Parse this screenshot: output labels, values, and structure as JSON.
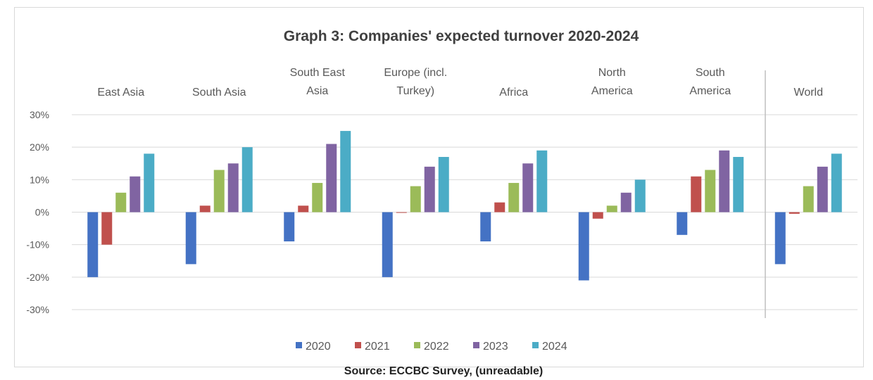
{
  "chart_data": {
    "type": "bar",
    "title": "Graph 3:  Companies' expected turnover 2020-2024",
    "categories": [
      "East Asia",
      "South Asia",
      "South East Asia",
      "Europe (incl. Turkey)",
      "Africa",
      "North America",
      "South America",
      "World"
    ],
    "category_labels": [
      [
        "East Asia"
      ],
      [
        "South Asia"
      ],
      [
        "South East",
        "Asia"
      ],
      [
        "Europe (incl.",
        "Turkey)"
      ],
      [
        "Africa"
      ],
      [
        "North",
        "America"
      ],
      [
        "South",
        "America"
      ],
      [
        "World"
      ]
    ],
    "series": [
      {
        "name": "2020",
        "color": "#4472c4",
        "values": [
          -20,
          -16,
          -9,
          -20,
          -9,
          -21,
          -7,
          -16
        ]
      },
      {
        "name": "2021",
        "color": "#c0504d",
        "values": [
          -10,
          2,
          2,
          0,
          3,
          -2,
          11,
          -0.5
        ]
      },
      {
        "name": "2022",
        "color": "#9bbb59",
        "values": [
          6,
          13,
          9,
          8,
          9,
          2,
          13,
          8
        ]
      },
      {
        "name": "2023",
        "color": "#8064a2",
        "values": [
          11,
          15,
          21,
          14,
          15,
          6,
          19,
          14
        ]
      },
      {
        "name": "2024",
        "color": "#4bacc6",
        "values": [
          18,
          20,
          25,
          17,
          19,
          10,
          17,
          18
        ]
      }
    ],
    "yticks": [
      "30%",
      "20%",
      "10%",
      "0%",
      "-10%",
      "-20%",
      "-30%"
    ],
    "ylim": [
      -30,
      30
    ],
    "grid": true,
    "legend_position": "bottom",
    "separator_before_last_category": true
  },
  "source_text": "Source: ECCBC Survey, (unreadable)"
}
